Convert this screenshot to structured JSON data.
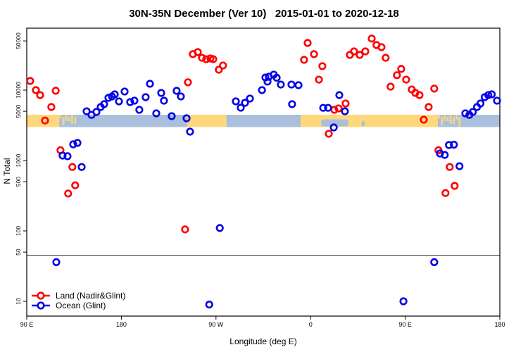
{
  "chart_data": {
    "type": "scatter",
    "title": "30N-35N December (Ver 10)   2015-01-01 to 2020-12-18",
    "xlabel": "Longitude (deg E)",
    "ylabel": "N Total",
    "x_axis": {
      "range": [
        90,
        540
      ],
      "ticks": [
        {
          "lon": 90,
          "label": "90 E"
        },
        {
          "lon": 180,
          "label": "180"
        },
        {
          "lon": 270,
          "label": "90 W"
        },
        {
          "lon": 360,
          "label": "0"
        },
        {
          "lon": 450,
          "label": "90 E"
        },
        {
          "lon": 540,
          "label": "180"
        }
      ]
    },
    "y_axis": {
      "scale": "log",
      "range": [
        8,
        65000
      ],
      "ticks": [
        {
          "value": 50000,
          "label": "50000"
        },
        {
          "value": 10000,
          "label": "10000"
        },
        {
          "value": 5000,
          "label": "5000"
        },
        {
          "value": 1000,
          "label": "1000"
        },
        {
          "value": 500,
          "label": "500"
        },
        {
          "value": 100,
          "label": "100"
        },
        {
          "value": 50,
          "label": "50"
        },
        {
          "value": 10,
          "label": "10"
        }
      ]
    },
    "threshold_line_value": 45,
    "legend_position": "bottom-left",
    "grid": false,
    "map_band": {
      "description": "land-ocean strip for 30N-35N latitude belt",
      "value_range": [
        3400,
        4600
      ],
      "ocean_color": "#a9bfdb",
      "land_color": "#ffd87e",
      "segments": [
        {
          "from": 90,
          "to": 121,
          "type": "land"
        },
        {
          "from": 121,
          "to": 139,
          "type": "islands"
        },
        {
          "from": 242.5,
          "to": 280,
          "type": "land"
        },
        {
          "from": 350.5,
          "to": 481,
          "type": "land",
          "notches": [
            {
              "from": 370,
              "to": 396,
              "depth": 0.62
            },
            {
              "from": 408.5,
              "to": 411.5,
              "depth": 0.5
            }
          ]
        },
        {
          "from": 481,
          "to": 504,
          "type": "islands"
        }
      ]
    },
    "series": [
      {
        "name": "Land (Nadir&Glint)",
        "color": "#ff0000",
        "points": [
          [
            93.3,
            13500
          ],
          [
            98.7,
            10000
          ],
          [
            102.7,
            8500
          ],
          [
            107.4,
            3700
          ],
          [
            113.4,
            5750
          ],
          [
            117.5,
            9800
          ],
          [
            122.1,
            1400
          ],
          [
            129.4,
            340
          ],
          [
            133.4,
            810
          ],
          [
            136.1,
            445
          ],
          [
            240.6,
            105
          ],
          [
            243.3,
            12900
          ],
          [
            248.0,
            32400
          ],
          [
            252.7,
            34700
          ],
          [
            256.7,
            28800
          ],
          [
            260.7,
            27500
          ],
          [
            264.7,
            28200
          ],
          [
            267.4,
            27500
          ],
          [
            272.7,
            19500
          ],
          [
            276.7,
            22400
          ],
          [
            353.8,
            26900
          ],
          [
            357.2,
            46800
          ],
          [
            363.2,
            32400
          ],
          [
            367.9,
            14100
          ],
          [
            371.2,
            21900
          ],
          [
            377.3,
            2400
          ],
          [
            382.6,
            5250
          ],
          [
            386.6,
            5500
          ],
          [
            393.3,
            6460
          ],
          [
            397.3,
            31600
          ],
          [
            401.3,
            35500
          ],
          [
            406.7,
            31600
          ],
          [
            412.0,
            35500
          ],
          [
            418.1,
            54000
          ],
          [
            422.7,
            43700
          ],
          [
            427.4,
            40700
          ],
          [
            431.4,
            28800
          ],
          [
            436.1,
            11200
          ],
          [
            442.1,
            16300
          ],
          [
            446.2,
            20000
          ],
          [
            450.9,
            14100
          ],
          [
            456.2,
            10200
          ],
          [
            459.6,
            9120
          ],
          [
            463.6,
            8500
          ],
          [
            467.6,
            3800
          ],
          [
            472.3,
            5750
          ],
          [
            477.6,
            10500
          ],
          [
            481.6,
            1400
          ],
          [
            488.3,
            345
          ],
          [
            492.3,
            810
          ],
          [
            497.0,
            437
          ]
        ]
      },
      {
        "name": "Ocean (Glint)",
        "color": "#0505e8",
        "points": [
          [
            118.1,
            36
          ],
          [
            124.1,
            1175
          ],
          [
            128.8,
            1150
          ],
          [
            134.2,
            1700
          ],
          [
            138.2,
            1780
          ],
          [
            142.2,
            810
          ],
          [
            146.9,
            5000
          ],
          [
            151.6,
            4450
          ],
          [
            156.3,
            4900
          ],
          [
            160.3,
            5750
          ],
          [
            163.6,
            6310
          ],
          [
            167.7,
            7760
          ],
          [
            171.0,
            8130
          ],
          [
            173.7,
            8710
          ],
          [
            177.7,
            6920
          ],
          [
            183.1,
            9550
          ],
          [
            188.4,
            6760
          ],
          [
            192.4,
            7080
          ],
          [
            197.1,
            5250
          ],
          [
            203.1,
            7940
          ],
          [
            207.2,
            12300
          ],
          [
            213.2,
            4680
          ],
          [
            217.9,
            9120
          ],
          [
            220.5,
            7080
          ],
          [
            227.9,
            4270
          ],
          [
            232.6,
            9770
          ],
          [
            236.6,
            8130
          ],
          [
            242.0,
            3980
          ],
          [
            245.3,
            2570
          ],
          [
            263.6,
            9
          ],
          [
            273.6,
            110
          ],
          [
            288.9,
            6920
          ],
          [
            293.6,
            5620
          ],
          [
            297.6,
            6610
          ],
          [
            302.3,
            7590
          ],
          [
            313.7,
            10000
          ],
          [
            317.0,
            15100
          ],
          [
            319.0,
            13200
          ],
          [
            320.3,
            15500
          ],
          [
            325.0,
            16600
          ],
          [
            327.7,
            15000
          ],
          [
            331.7,
            12000
          ],
          [
            341.8,
            12000
          ],
          [
            342.4,
            6310
          ],
          [
            348.5,
            11750
          ],
          [
            372.0,
            5600
          ],
          [
            376.6,
            5600
          ],
          [
            382.0,
            2950
          ],
          [
            387.3,
            8500
          ],
          [
            392.6,
            5000
          ],
          [
            448.3,
            10
          ],
          [
            477.6,
            36
          ],
          [
            483.0,
            1260
          ],
          [
            487.6,
            1200
          ],
          [
            491.6,
            1660
          ],
          [
            496.3,
            1680
          ],
          [
            501.6,
            830
          ],
          [
            507.2,
            4680
          ],
          [
            511.0,
            4450
          ],
          [
            514.3,
            4900
          ],
          [
            518.3,
            5750
          ],
          [
            521.6,
            6460
          ],
          [
            525.6,
            7940
          ],
          [
            529.0,
            8500
          ],
          [
            532.3,
            8710
          ],
          [
            537.3,
            7080
          ]
        ]
      }
    ]
  }
}
